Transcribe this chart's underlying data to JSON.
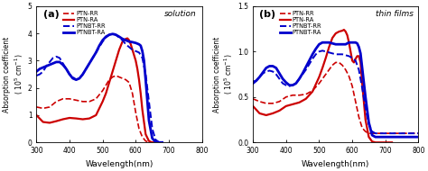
{
  "panel_a": {
    "title": "solution",
    "xlabel": "Wavelength(nm)",
    "xlim": [
      300,
      800
    ],
    "ylim": [
      0,
      5
    ],
    "yticks": [
      0,
      1,
      2,
      3,
      4,
      5
    ],
    "xticks": [
      300,
      400,
      500,
      600,
      700,
      800
    ],
    "curves": {
      "PTN-RR": {
        "color": "#cc0000",
        "style": "dashed",
        "lw": 1.2,
        "x": [
          300,
          320,
          340,
          360,
          380,
          400,
          420,
          440,
          460,
          480,
          500,
          510,
          520,
          530,
          540,
          550,
          560,
          570,
          580,
          590,
          600,
          610,
          620,
          630,
          640,
          650,
          660
        ],
        "y": [
          1.3,
          1.25,
          1.3,
          1.5,
          1.6,
          1.6,
          1.55,
          1.5,
          1.5,
          1.6,
          1.9,
          2.1,
          2.3,
          2.4,
          2.45,
          2.4,
          2.35,
          2.3,
          2.2,
          1.8,
          1.1,
          0.5,
          0.2,
          0.05,
          0.01,
          0.0,
          0.0
        ]
      },
      "PTN-RA": {
        "color": "#cc0000",
        "style": "solid",
        "lw": 1.6,
        "x": [
          300,
          320,
          340,
          360,
          380,
          400,
          420,
          440,
          460,
          480,
          500,
          510,
          520,
          530,
          540,
          550,
          560,
          570,
          575,
          580,
          585,
          590,
          595,
          600,
          605,
          610,
          615,
          620,
          630,
          640,
          650,
          660
        ],
        "y": [
          1.0,
          0.75,
          0.72,
          0.78,
          0.85,
          0.9,
          0.88,
          0.85,
          0.88,
          1.0,
          1.5,
          1.8,
          2.2,
          2.6,
          3.0,
          3.4,
          3.7,
          3.8,
          3.82,
          3.75,
          3.6,
          3.4,
          3.2,
          3.0,
          2.7,
          2.3,
          1.8,
          1.2,
          0.3,
          0.05,
          0.0,
          0.0
        ]
      },
      "PTNBT-RR": {
        "color": "#0000cc",
        "style": "dashed",
        "lw": 1.4,
        "x": [
          300,
          310,
          320,
          330,
          340,
          350,
          360,
          370,
          380,
          390,
          400,
          410,
          420,
          430,
          440,
          450,
          460,
          470,
          480,
          490,
          500,
          510,
          520,
          530,
          540,
          550,
          560,
          570,
          580,
          590,
          600,
          610,
          620,
          630,
          640,
          650,
          660,
          670,
          680
        ],
        "y": [
          2.45,
          2.5,
          2.6,
          2.8,
          2.95,
          3.1,
          3.15,
          3.1,
          2.9,
          2.7,
          2.5,
          2.4,
          2.3,
          2.35,
          2.5,
          2.7,
          2.9,
          3.1,
          3.3,
          3.5,
          3.7,
          3.85,
          3.95,
          4.0,
          3.95,
          3.85,
          3.75,
          3.6,
          3.5,
          3.4,
          3.35,
          3.3,
          3.1,
          2.5,
          1.5,
          0.5,
          0.1,
          0.01,
          0.0
        ]
      },
      "PTNBT-RA": {
        "color": "#0000cc",
        "style": "solid",
        "lw": 2.0,
        "x": [
          300,
          310,
          320,
          330,
          340,
          350,
          360,
          370,
          380,
          390,
          400,
          410,
          420,
          430,
          440,
          450,
          460,
          470,
          480,
          490,
          500,
          510,
          520,
          530,
          540,
          550,
          560,
          570,
          580,
          590,
          600,
          610,
          615,
          620,
          625,
          630,
          640,
          650,
          660,
          670,
          680
        ],
        "y": [
          2.6,
          2.7,
          2.75,
          2.8,
          2.85,
          2.9,
          2.95,
          2.95,
          2.85,
          2.7,
          2.5,
          2.35,
          2.3,
          2.35,
          2.5,
          2.7,
          2.9,
          3.1,
          3.3,
          3.55,
          3.75,
          3.88,
          3.95,
          3.98,
          3.95,
          3.88,
          3.8,
          3.75,
          3.7,
          3.68,
          3.65,
          3.6,
          3.55,
          3.35,
          3.0,
          2.3,
          0.8,
          0.15,
          0.02,
          0.0,
          0.0
        ]
      }
    }
  },
  "panel_b": {
    "title": "thin films",
    "xlabel": "Wavelength(nm)",
    "xlim": [
      300,
      800
    ],
    "ylim": [
      0,
      1.5
    ],
    "yticks": [
      0,
      0.5,
      1.0,
      1.5
    ],
    "xticks": [
      300,
      400,
      500,
      600,
      700,
      800
    ],
    "curves": {
      "PTN-RR": {
        "color": "#cc0000",
        "style": "dashed",
        "lw": 1.2,
        "x": [
          300,
          320,
          340,
          360,
          380,
          400,
          420,
          440,
          460,
          480,
          500,
          510,
          520,
          530,
          540,
          550,
          560,
          570,
          580,
          590,
          600,
          610,
          620,
          630,
          640,
          650,
          660,
          670,
          680,
          700,
          720,
          740,
          760,
          780,
          800
        ],
        "y": [
          0.48,
          0.45,
          0.43,
          0.43,
          0.45,
          0.5,
          0.52,
          0.52,
          0.53,
          0.57,
          0.65,
          0.7,
          0.75,
          0.8,
          0.85,
          0.88,
          0.88,
          0.85,
          0.8,
          0.73,
          0.62,
          0.45,
          0.28,
          0.16,
          0.12,
          0.1,
          0.1,
          0.1,
          0.1,
          0.1,
          0.1,
          0.1,
          0.1,
          0.1,
          0.1
        ]
      },
      "PTN-RA": {
        "color": "#cc0000",
        "style": "solid",
        "lw": 1.6,
        "x": [
          300,
          320,
          340,
          360,
          380,
          400,
          420,
          440,
          460,
          480,
          500,
          510,
          520,
          530,
          540,
          550,
          560,
          570,
          575,
          580,
          585,
          590,
          595,
          600,
          605,
          610,
          615,
          620,
          625,
          630,
          640,
          650,
          660,
          670,
          680,
          700,
          720
        ],
        "y": [
          0.4,
          0.32,
          0.3,
          0.32,
          0.35,
          0.4,
          0.42,
          0.44,
          0.48,
          0.56,
          0.72,
          0.82,
          0.93,
          1.05,
          1.15,
          1.2,
          1.22,
          1.23,
          1.24,
          1.22,
          1.18,
          1.1,
          1.0,
          0.9,
          0.88,
          0.92,
          0.95,
          0.95,
          0.88,
          0.65,
          0.25,
          0.06,
          0.01,
          0.0,
          0.0,
          0.0,
          0.0
        ]
      },
      "PTNBT-RR": {
        "color": "#0000cc",
        "style": "dashed",
        "lw": 1.4,
        "x": [
          300,
          310,
          320,
          330,
          340,
          350,
          360,
          370,
          380,
          390,
          400,
          410,
          420,
          430,
          440,
          450,
          460,
          470,
          480,
          490,
          500,
          510,
          520,
          530,
          540,
          550,
          560,
          570,
          580,
          590,
          600,
          610,
          620,
          630,
          640,
          650,
          660,
          670,
          680,
          700,
          720,
          750,
          780,
          800
        ],
        "y": [
          0.67,
          0.68,
          0.72,
          0.76,
          0.78,
          0.79,
          0.78,
          0.75,
          0.7,
          0.65,
          0.63,
          0.62,
          0.63,
          0.65,
          0.7,
          0.75,
          0.8,
          0.86,
          0.92,
          0.97,
          1.0,
          1.01,
          1.0,
          0.99,
          0.98,
          0.97,
          0.97,
          0.97,
          0.96,
          0.95,
          0.93,
          0.9,
          0.8,
          0.6,
          0.38,
          0.2,
          0.12,
          0.1,
          0.1,
          0.1,
          0.1,
          0.1,
          0.1,
          0.1
        ]
      },
      "PTNBT-RA": {
        "color": "#0000cc",
        "style": "solid",
        "lw": 2.0,
        "x": [
          300,
          310,
          320,
          330,
          340,
          350,
          360,
          370,
          380,
          390,
          400,
          410,
          420,
          430,
          440,
          450,
          460,
          470,
          480,
          490,
          500,
          510,
          520,
          530,
          540,
          550,
          560,
          570,
          580,
          590,
          600,
          610,
          615,
          620,
          625,
          630,
          640,
          650,
          660,
          670,
          680,
          700,
          720,
          750,
          780,
          800
        ],
        "y": [
          0.65,
          0.68,
          0.72,
          0.77,
          0.82,
          0.84,
          0.84,
          0.82,
          0.76,
          0.7,
          0.66,
          0.63,
          0.63,
          0.65,
          0.7,
          0.76,
          0.83,
          0.9,
          0.97,
          1.03,
          1.08,
          1.1,
          1.1,
          1.1,
          1.09,
          1.08,
          1.08,
          1.08,
          1.08,
          1.1,
          1.1,
          1.1,
          1.09,
          1.05,
          0.98,
          0.82,
          0.5,
          0.22,
          0.08,
          0.06,
          0.06,
          0.06,
          0.06,
          0.06,
          0.06,
          0.06
        ]
      }
    }
  },
  "legend_order": [
    "PTN-RR",
    "PTN-RA",
    "PTNBT-RR",
    "PTNBT-RA"
  ],
  "panel_labels": [
    "(a)",
    "(b)"
  ],
  "ylabel_a": "Absorption coefficient ( 10⁵ cm⁻¹)",
  "ylabel_b": "Absorption coefficient ( 10⁵ cm⁻¹)"
}
